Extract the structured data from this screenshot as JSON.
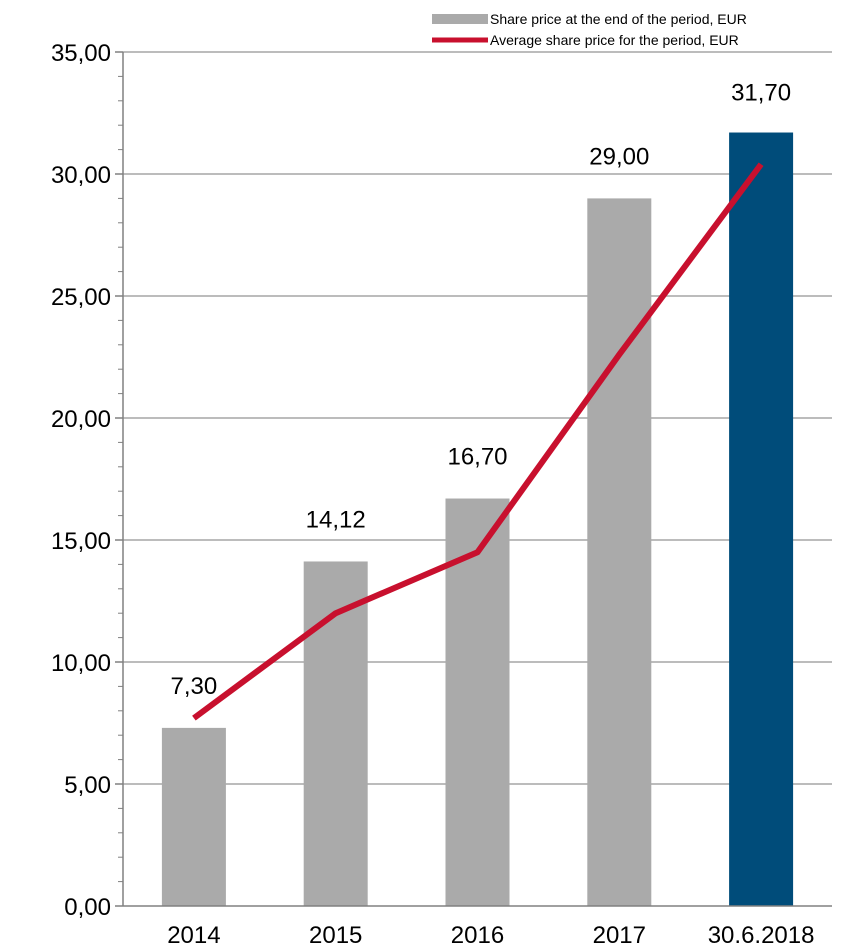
{
  "chart_data": {
    "type": "bar",
    "categories": [
      "2014",
      "2015",
      "2016",
      "2017",
      "30.6.2018"
    ],
    "series": [
      {
        "name": "Share price at the end of the period, EUR",
        "kind": "bar",
        "values": [
          7.3,
          14.12,
          16.7,
          29.0,
          31.7
        ],
        "value_labels": [
          "7,30",
          "14,12",
          "16,70",
          "29,00",
          "31,70"
        ],
        "colors": [
          "#aaaaaa",
          "#aaaaaa",
          "#aaaaaa",
          "#aaaaaa",
          "#004c7a"
        ]
      },
      {
        "name": "Average share price for the period, EUR",
        "kind": "line",
        "values": [
          7.7,
          12.0,
          14.5,
          22.6,
          30.4
        ],
        "color": "#c8102e"
      }
    ],
    "ylim": [
      0,
      35
    ],
    "yticks": [
      0,
      5,
      10,
      15,
      20,
      25,
      30,
      35
    ],
    "ytick_labels": [
      "0,00",
      "5,00",
      "10,00",
      "15,00",
      "20,00",
      "25,00",
      "30,00",
      "35,00"
    ],
    "grid": true,
    "legend_position": "top-right",
    "xlabel": "",
    "ylabel": "",
    "title": ""
  }
}
